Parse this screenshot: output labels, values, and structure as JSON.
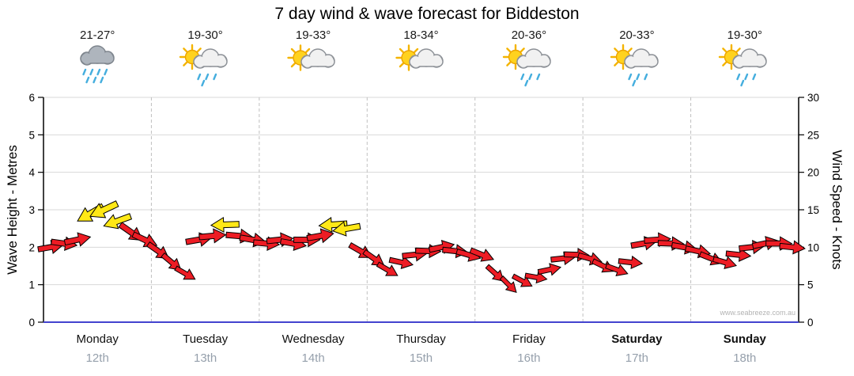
{
  "title": "7 day wind & wave forecast for Biddeston",
  "watermark": "www.seabreeze.com.au",
  "chart_data": {
    "type": "wind_arrow_timeseries",
    "title": "7 day wind & wave forecast for Biddeston",
    "left_axis": {
      "label": "Wave Height - Metres",
      "min": 0,
      "max": 6,
      "ticks": [
        0,
        1,
        2,
        3,
        4,
        5,
        6
      ]
    },
    "right_axis": {
      "label": "Wind Speed - Knots",
      "min": 0,
      "max": 30,
      "ticks": [
        0,
        5,
        10,
        15,
        20,
        25,
        30
      ]
    },
    "grid": {
      "horizontal": true,
      "day_separators": "dashed"
    },
    "days": [
      {
        "name": "Monday",
        "date": "12th",
        "temp": "21-27°",
        "icon": "rain",
        "bold": false
      },
      {
        "name": "Tuesday",
        "date": "13th",
        "temp": "19-30°",
        "icon": "sun-cloud-rain",
        "bold": false
      },
      {
        "name": "Wednesday",
        "date": "14th",
        "temp": "19-33°",
        "icon": "sun-cloud",
        "bold": false
      },
      {
        "name": "Thursday",
        "date": "15th",
        "temp": "18-34°",
        "icon": "sun-cloud",
        "bold": false
      },
      {
        "name": "Friday",
        "date": "16th",
        "temp": "20-36°",
        "icon": "sun-cloud-rain",
        "bold": false
      },
      {
        "name": "Saturday",
        "date": "17th",
        "temp": "20-33°",
        "icon": "sun-cloud-rain",
        "bold": true
      },
      {
        "name": "Sunday",
        "date": "18th",
        "temp": "19-30°",
        "icon": "sun-cloud-rain",
        "bold": true
      }
    ],
    "colors": {
      "red": "#ed1c24",
      "yellow": "#ffe816",
      "outline": "#000000",
      "axis": "#000000",
      "baseline": "#4343cf",
      "grid": "#d8d8d8",
      "day_grid": "#c0c0c0"
    },
    "wind_points_note": "t = day offset (0=Mon 00:00), k = wind speed knots, d = arrow direction degrees clockwise from east, c = arrow colour (r=red, y=yellow)",
    "wind_points": [
      {
        "t": 0.0625,
        "k": 10,
        "d": -10,
        "c": "r"
      },
      {
        "t": 0.1875,
        "k": 10.5,
        "d": 8,
        "c": "r"
      },
      {
        "t": 0.3125,
        "k": 11,
        "d": -12,
        "c": "r"
      },
      {
        "t": 0.4375,
        "k": 14.5,
        "d": 150,
        "c": "y"
      },
      {
        "t": 0.5625,
        "k": 15,
        "d": 155,
        "c": "y"
      },
      {
        "t": 0.6875,
        "k": 13.5,
        "d": 160,
        "c": "y"
      },
      {
        "t": 0.8125,
        "k": 12,
        "d": 35,
        "c": "r"
      },
      {
        "t": 0.9375,
        "k": 11,
        "d": 25,
        "c": "r"
      },
      {
        "t": 1.0625,
        "k": 9.5,
        "d": 35,
        "c": "r"
      },
      {
        "t": 1.1875,
        "k": 8,
        "d": 40,
        "c": "r"
      },
      {
        "t": 1.3125,
        "k": 6.5,
        "d": 30,
        "c": "r"
      },
      {
        "t": 1.4375,
        "k": 11,
        "d": -10,
        "c": "r"
      },
      {
        "t": 1.5625,
        "k": 11.5,
        "d": -5,
        "c": "r"
      },
      {
        "t": 1.6875,
        "k": 13,
        "d": 178,
        "c": "y"
      },
      {
        "t": 1.8125,
        "k": 11.5,
        "d": 5,
        "c": "r"
      },
      {
        "t": 1.9375,
        "k": 11,
        "d": 10,
        "c": "r"
      },
      {
        "t": 2.0625,
        "k": 10.5,
        "d": 5,
        "c": "r"
      },
      {
        "t": 2.1875,
        "k": 11,
        "d": -6,
        "c": "r"
      },
      {
        "t": 2.3125,
        "k": 10.5,
        "d": 10,
        "c": "r"
      },
      {
        "t": 2.4375,
        "k": 11,
        "d": 0,
        "c": "r"
      },
      {
        "t": 2.5625,
        "k": 11.5,
        "d": -10,
        "c": "r"
      },
      {
        "t": 2.6875,
        "k": 13,
        "d": 176,
        "c": "y"
      },
      {
        "t": 2.8125,
        "k": 12.5,
        "d": 170,
        "c": "y"
      },
      {
        "t": 2.9375,
        "k": 9.5,
        "d": 30,
        "c": "r"
      },
      {
        "t": 3.0625,
        "k": 8.5,
        "d": 35,
        "c": "r"
      },
      {
        "t": 3.1875,
        "k": 7,
        "d": 30,
        "c": "r"
      },
      {
        "t": 3.3125,
        "k": 8,
        "d": 12,
        "c": "r"
      },
      {
        "t": 3.4375,
        "k": 9,
        "d": -6,
        "c": "r"
      },
      {
        "t": 3.5625,
        "k": 9.5,
        "d": 2,
        "c": "r"
      },
      {
        "t": 3.6875,
        "k": 10,
        "d": -12,
        "c": "r"
      },
      {
        "t": 3.8125,
        "k": 9.5,
        "d": 6,
        "c": "r"
      },
      {
        "t": 3.9375,
        "k": 9,
        "d": 16,
        "c": "r"
      },
      {
        "t": 4.0625,
        "k": 9,
        "d": 22,
        "c": "r"
      },
      {
        "t": 4.1875,
        "k": 6.5,
        "d": 42,
        "c": "r"
      },
      {
        "t": 4.3125,
        "k": 5,
        "d": 45,
        "c": "r"
      },
      {
        "t": 4.4375,
        "k": 5.5,
        "d": 28,
        "c": "r"
      },
      {
        "t": 4.5625,
        "k": 6,
        "d": 10,
        "c": "r"
      },
      {
        "t": 4.6875,
        "k": 7,
        "d": -12,
        "c": "r"
      },
      {
        "t": 4.8125,
        "k": 8.5,
        "d": -6,
        "c": "r"
      },
      {
        "t": 4.9375,
        "k": 9,
        "d": 2,
        "c": "r"
      },
      {
        "t": 5.0625,
        "k": 8.5,
        "d": 16,
        "c": "r"
      },
      {
        "t": 5.1875,
        "k": 7.5,
        "d": 26,
        "c": "r"
      },
      {
        "t": 5.3125,
        "k": 7,
        "d": 20,
        "c": "r"
      },
      {
        "t": 5.4375,
        "k": 8,
        "d": 6,
        "c": "r"
      },
      {
        "t": 5.5625,
        "k": 10.5,
        "d": -10,
        "c": "r"
      },
      {
        "t": 5.6875,
        "k": 11,
        "d": -4,
        "c": "r"
      },
      {
        "t": 5.8125,
        "k": 10.5,
        "d": 2,
        "c": "r"
      },
      {
        "t": 5.9375,
        "k": 10,
        "d": 10,
        "c": "r"
      },
      {
        "t": 6.0625,
        "k": 9.5,
        "d": 12,
        "c": "r"
      },
      {
        "t": 6.1875,
        "k": 8.5,
        "d": 22,
        "c": "r"
      },
      {
        "t": 6.3125,
        "k": 8,
        "d": 16,
        "c": "r"
      },
      {
        "t": 6.4375,
        "k": 9,
        "d": 6,
        "c": "r"
      },
      {
        "t": 6.5625,
        "k": 10,
        "d": -6,
        "c": "r"
      },
      {
        "t": 6.6875,
        "k": 10.5,
        "d": -12,
        "c": "r"
      },
      {
        "t": 6.8125,
        "k": 10.5,
        "d": 0,
        "c": "r"
      },
      {
        "t": 6.9375,
        "k": 10,
        "d": 6,
        "c": "r"
      }
    ]
  }
}
